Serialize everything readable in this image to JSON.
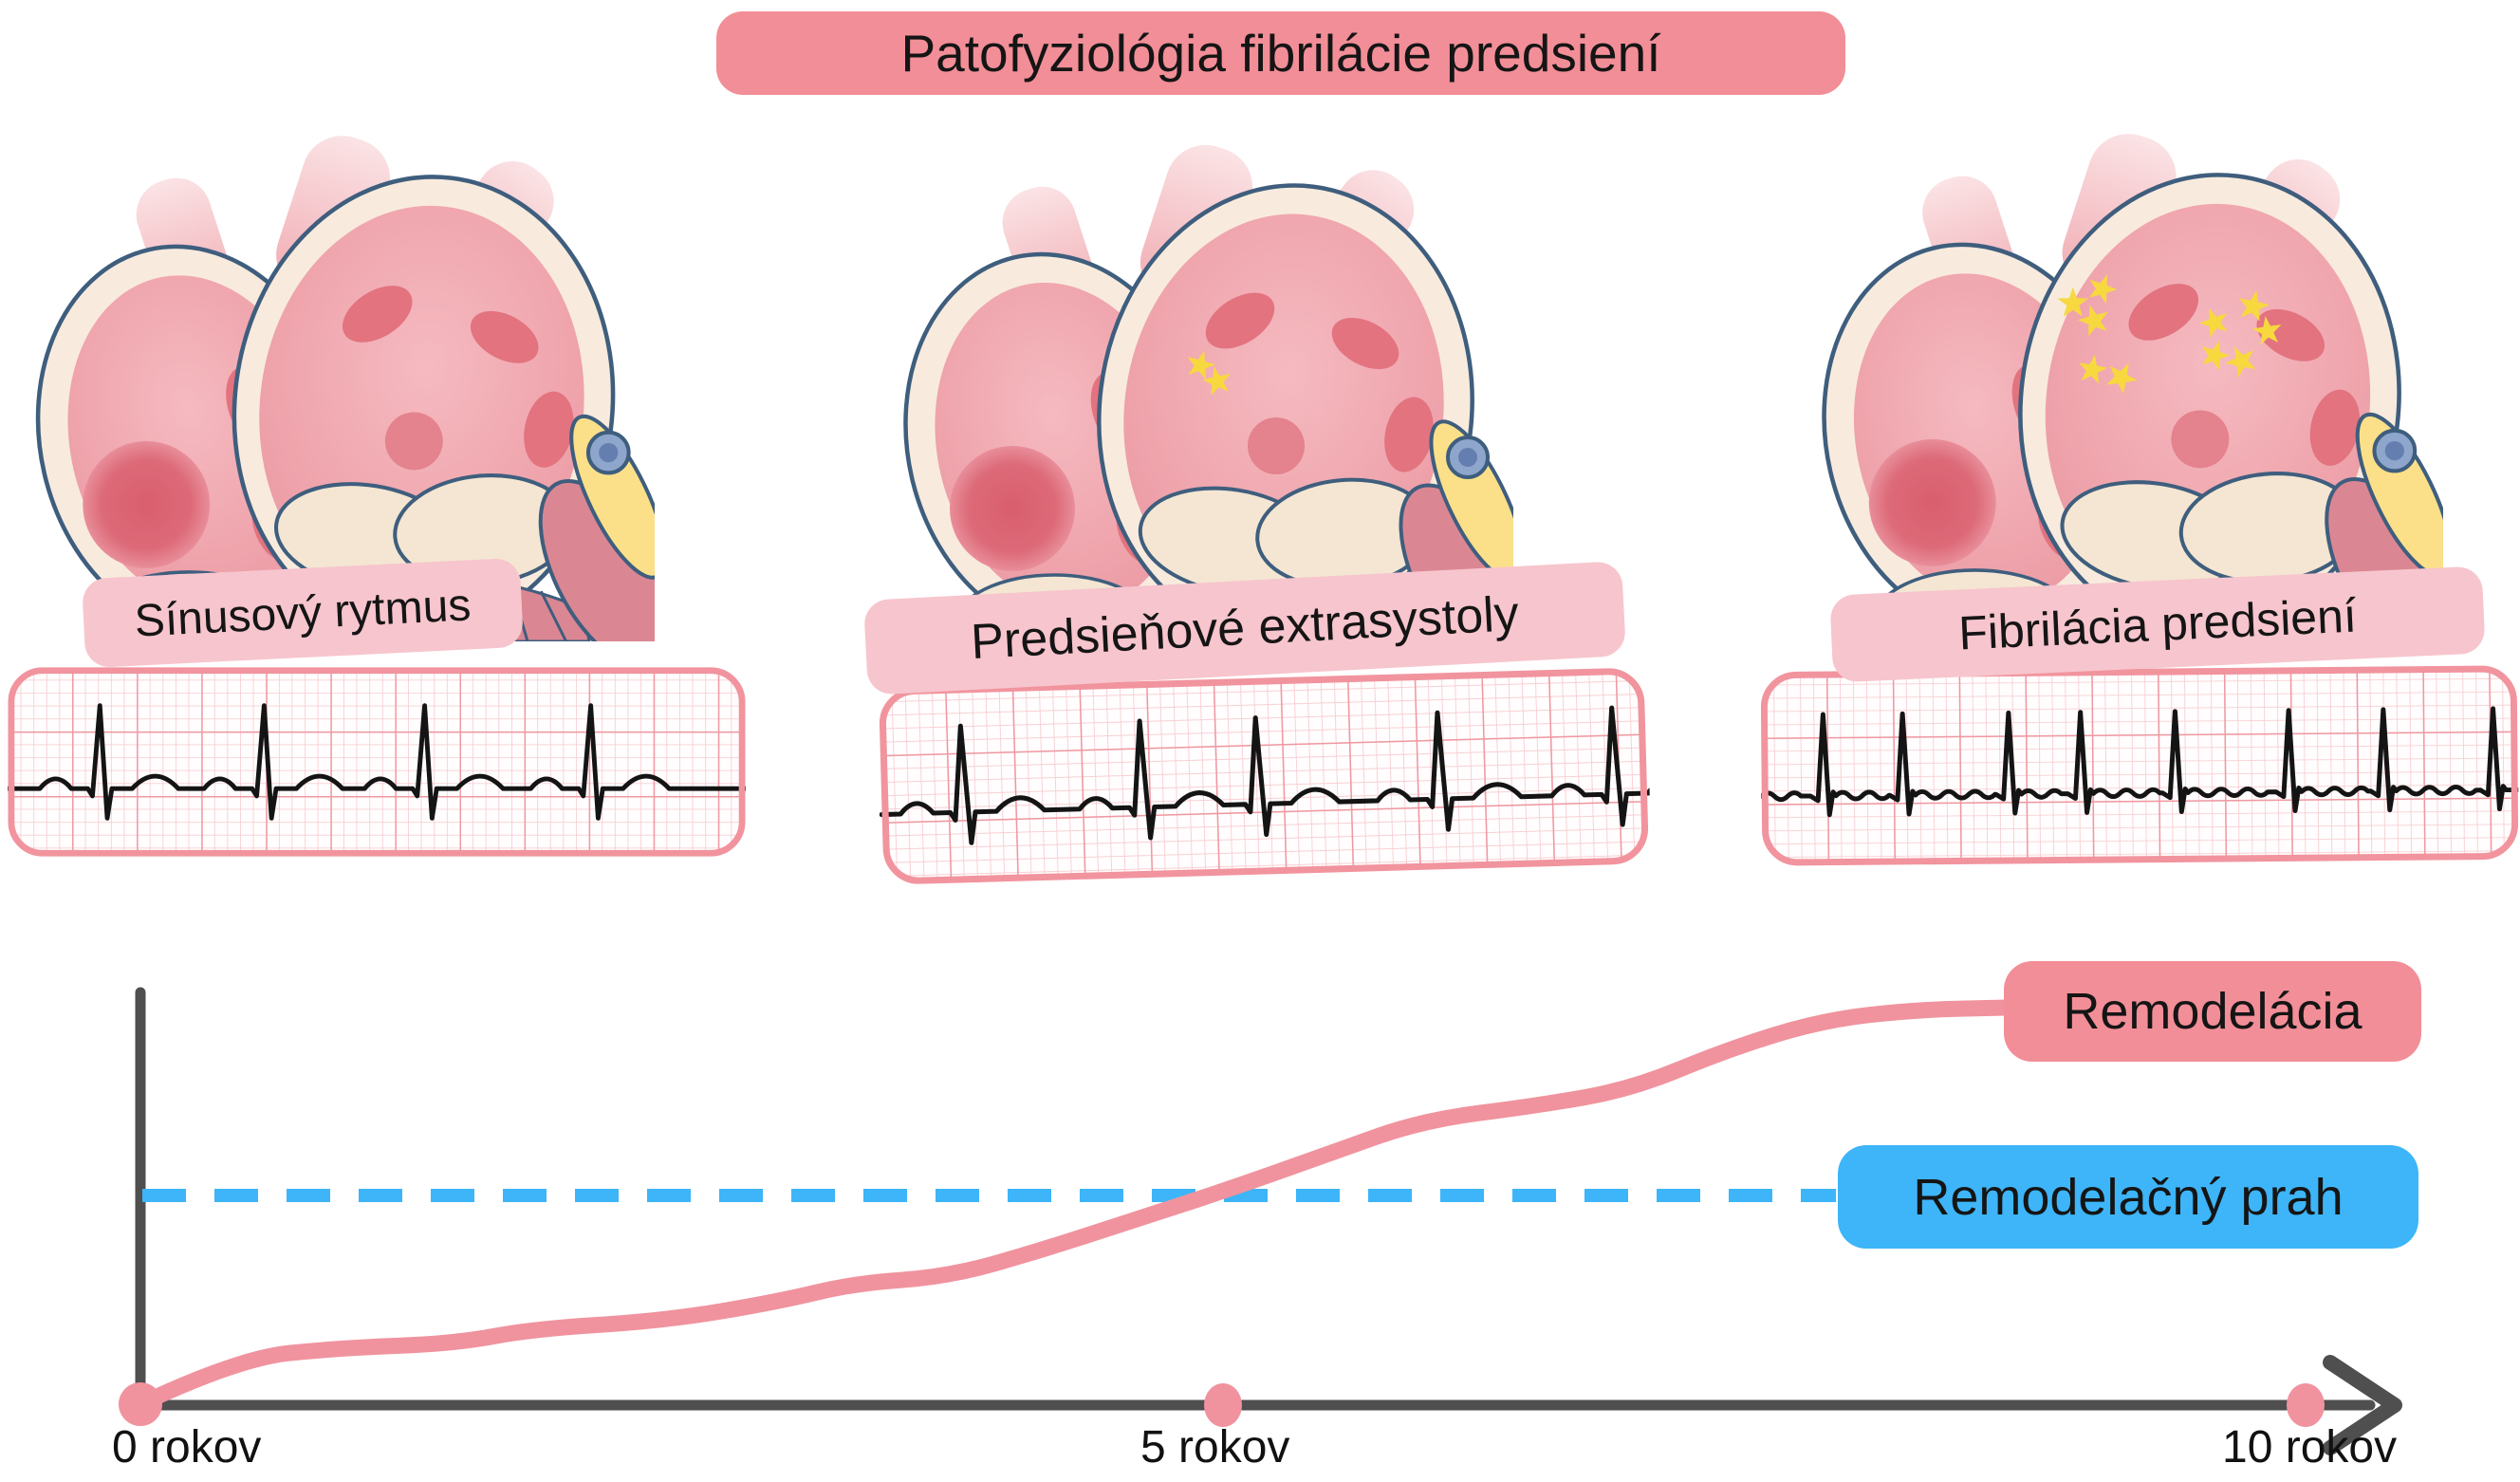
{
  "title": {
    "text": "Patofyziológia fibrilácie predsiení"
  },
  "panels": [
    {
      "label": "Sínusový rytmus",
      "rhythm": "sinusový rytmus",
      "stars": []
    },
    {
      "label": "Predsieňové extrasystoly",
      "rhythm": "predsieňové extrasystoly",
      "stars": [
        [
          350,
          247,
          1.6,
          15
        ],
        [
          368,
          264,
          1.6,
          -12
        ]
      ]
    },
    {
      "label": "Fibrilácia predsiení",
      "rhythm": "fibrilácia predsiení",
      "stars": [
        [
          298,
          191,
          1.7,
          0
        ],
        [
          328,
          176,
          1.6,
          20
        ],
        [
          320,
          209,
          1.7,
          -15
        ],
        [
          318,
          260,
          1.6,
          10
        ],
        [
          348,
          268,
          1.7,
          28
        ],
        [
          445,
          211,
          1.6,
          -20
        ],
        [
          485,
          194,
          1.7,
          12
        ],
        [
          500,
          220,
          1.6,
          -8
        ],
        [
          445,
          245,
          1.6,
          18
        ],
        [
          473,
          251,
          1.7,
          -25
        ]
      ]
    }
  ],
  "ecg_strips": [
    {
      "rhythm": "sinus",
      "r_peaks": [
        100,
        278,
        452,
        632
      ],
      "premature": [],
      "p_waves": true,
      "t_waves": true,
      "f_waves": false
    },
    {
      "rhythm": "extrasystoly",
      "r_peaks": [
        85,
        272,
        393,
        583,
        765
      ],
      "premature": [
        2
      ],
      "p_waves": true,
      "t_waves": true,
      "f_waves": false
    },
    {
      "rhythm": "fibrilácia",
      "r_peaks": [
        66,
        150,
        262,
        338,
        438,
        558,
        658,
        774
      ],
      "premature": [],
      "p_waves": false,
      "t_waves": false,
      "f_waves": true
    }
  ],
  "chart_data": {
    "type": "line",
    "title": "",
    "xlabel": "",
    "ylabel": "",
    "x_ticks": [
      "0 rokov",
      "5 rokov",
      "10 rokov"
    ],
    "x_tick_years": [
      0,
      5,
      10
    ],
    "x_range_years": [
      0,
      10
    ],
    "grid": false,
    "legend_position": "right",
    "axis_marker_years": [
      5,
      10
    ],
    "threshold": {
      "label": "Remodelačný prah",
      "value": 100,
      "style": "dashed",
      "color": "#3db5f8",
      "x_end_year": 7.8
    },
    "series": [
      {
        "name": "Remodelácia",
        "color": "#f0939e",
        "style": "solid",
        "x_years": [
          0,
          0.45,
          0.93,
          1.45,
          1.81,
          2.42,
          2.94,
          3.3,
          3.73,
          4.17,
          4.61,
          5.0,
          5.49,
          5.92,
          6.45,
          6.89,
          7.33,
          7.77,
          8.2,
          8.62
        ],
        "y_units": [
          0,
          22,
          27,
          29,
          36,
          40,
          49,
          58,
          61,
          74,
          89,
          102,
          120,
          136,
          143,
          151,
          170,
          184,
          189,
          190
        ]
      }
    ],
    "annotation": "Remodelácia curve crosses Remodelačný prah at ≈5 rokov"
  },
  "colors": {
    "accent_pink": "#f28e97",
    "label_pink": "#f7c5cd",
    "threshold_blue": "#3db5f8",
    "curve_pink": "#f0939e",
    "axis_gray": "#4f4f4f",
    "ecg_border": "#f1949e",
    "ecg_grid_major": "#ef98a1",
    "ecg_grid_minor": "#f7c9ce",
    "ecg_trace": "#141414",
    "star_yellow": "#f7d83f"
  }
}
